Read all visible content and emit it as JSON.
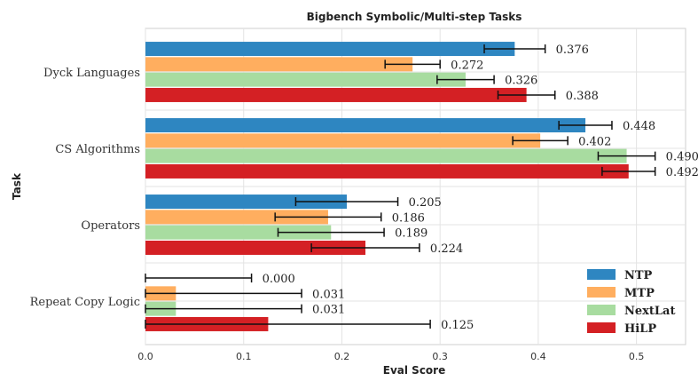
{
  "chart_data": {
    "type": "bar",
    "orientation": "horizontal",
    "title": "Bigbench Symbolic/Multi-step Tasks",
    "xlabel": "Eval Score",
    "ylabel": "Task",
    "xlim": [
      0,
      0.55
    ],
    "xticks": [
      "0.0",
      "0.1",
      "0.2",
      "0.3",
      "0.4",
      "0.5"
    ],
    "grid": true,
    "legend_position": "bottom-right",
    "categories": [
      "Dyck Languages",
      "CS Algorithms",
      "Operators",
      "Repeat Copy Logic"
    ],
    "series": [
      {
        "name": "NTP",
        "color": "#2e86c1",
        "values": [
          0.376,
          0.448,
          0.205,
          0.0
        ],
        "labels": [
          "0.376",
          "0.448",
          "0.205",
          "0.000"
        ],
        "errors": [
          0.031,
          0.027,
          0.052,
          0.108
        ]
      },
      {
        "name": "MTP",
        "color": "#ffae5f",
        "values": [
          0.272,
          0.402,
          0.186,
          0.031
        ],
        "labels": [
          "0.272",
          "0.402",
          "0.186",
          "0.031"
        ],
        "errors": [
          0.028,
          0.028,
          0.054,
          0.128
        ]
      },
      {
        "name": "NextLat",
        "color": "#a8dca0",
        "values": [
          0.326,
          0.49,
          0.189,
          0.031
        ],
        "labels": [
          "0.326",
          "0.490",
          "0.189",
          "0.031"
        ],
        "errors": [
          0.029,
          0.029,
          0.054,
          0.128
        ]
      },
      {
        "name": "HiLP",
        "color": "#d42024",
        "values": [
          0.388,
          0.492,
          0.224,
          0.125
        ],
        "labels": [
          "0.388",
          "0.492",
          "0.224",
          "0.125"
        ],
        "errors": [
          0.029,
          0.027,
          0.055,
          0.165
        ]
      }
    ]
  }
}
